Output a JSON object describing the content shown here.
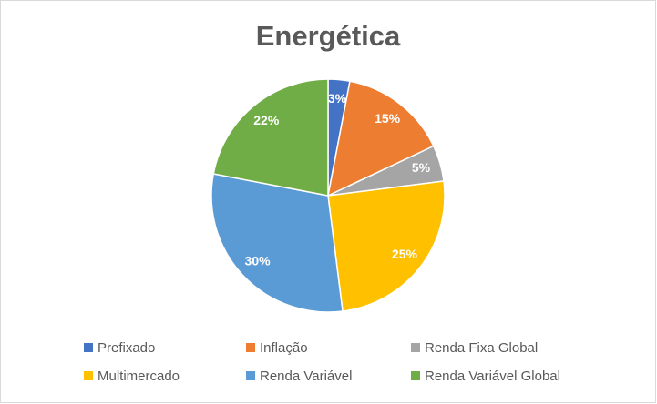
{
  "chart_data": {
    "type": "pie",
    "title": "Energética",
    "categories": [
      "Prefixado",
      "Inflação",
      "Renda Fixa Global",
      "Multimercado",
      "Renda Variável",
      "Renda Variável Global"
    ],
    "values": [
      3,
      15,
      5,
      25,
      30,
      22
    ],
    "value_labels": [
      "3%",
      "15%",
      "5%",
      "25%",
      "30%",
      "22%"
    ],
    "colors": [
      "#4472c4",
      "#ed7d31",
      "#a5a5a5",
      "#ffc000",
      "#5b9bd5",
      "#70ad47"
    ],
    "legend": "bottom"
  }
}
